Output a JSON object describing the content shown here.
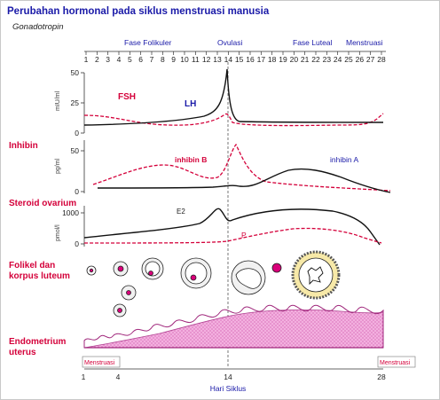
{
  "title": "Perubahan hormonal pada siklus menstruasi manusia",
  "subtitle": "Gonadotropin",
  "phases": {
    "follicular": "Fase Folikuler",
    "ovulation": "Ovulasi",
    "luteal": "Fase Luteal",
    "menstruation": "Menstruasi"
  },
  "day_ticks": [
    "1",
    "2",
    "3",
    "4",
    "5",
    "6",
    "7",
    "8",
    "9",
    "10",
    "11",
    "12",
    "13",
    "14",
    "15",
    "16",
    "17",
    "18",
    "19",
    "20",
    "21",
    "22",
    "23",
    "24",
    "25",
    "26",
    "27",
    "28"
  ],
  "gonadotropin": {
    "unit": "mIU/ml",
    "ticks": [
      "50",
      "25",
      "0"
    ],
    "fsh_label": "FSH",
    "lh_label": "LH"
  },
  "inhibin": {
    "section": "Inhibin",
    "unit": "pg/ml",
    "ticks": [
      "50",
      "0"
    ],
    "b_label": "inhibin B",
    "a_label": "inhibin A"
  },
  "steroid": {
    "section": "Steroid ovarium",
    "unit": "pmol/l",
    "ticks": [
      "1000",
      "0"
    ],
    "e2_label": "E2",
    "p_label": "P"
  },
  "follicle": {
    "section_line1": "Folikel dan",
    "section_line2": "korpus luteum"
  },
  "endometrium": {
    "section_line1": "Endometrium",
    "section_line2": "uterus"
  },
  "menstruation_box_left": "Menstruasi",
  "menstruation_box_right": "Menstruasi",
  "x_ticks": [
    "1",
    "4",
    "14",
    "28"
  ],
  "x_axis_label": "Hari Siklus",
  "colors": {
    "title": "#1a1aa8",
    "section_red": "#d4003a",
    "curve_black": "#111111",
    "curve_red": "#d4003a",
    "endometrium": "#e07ac8"
  }
}
